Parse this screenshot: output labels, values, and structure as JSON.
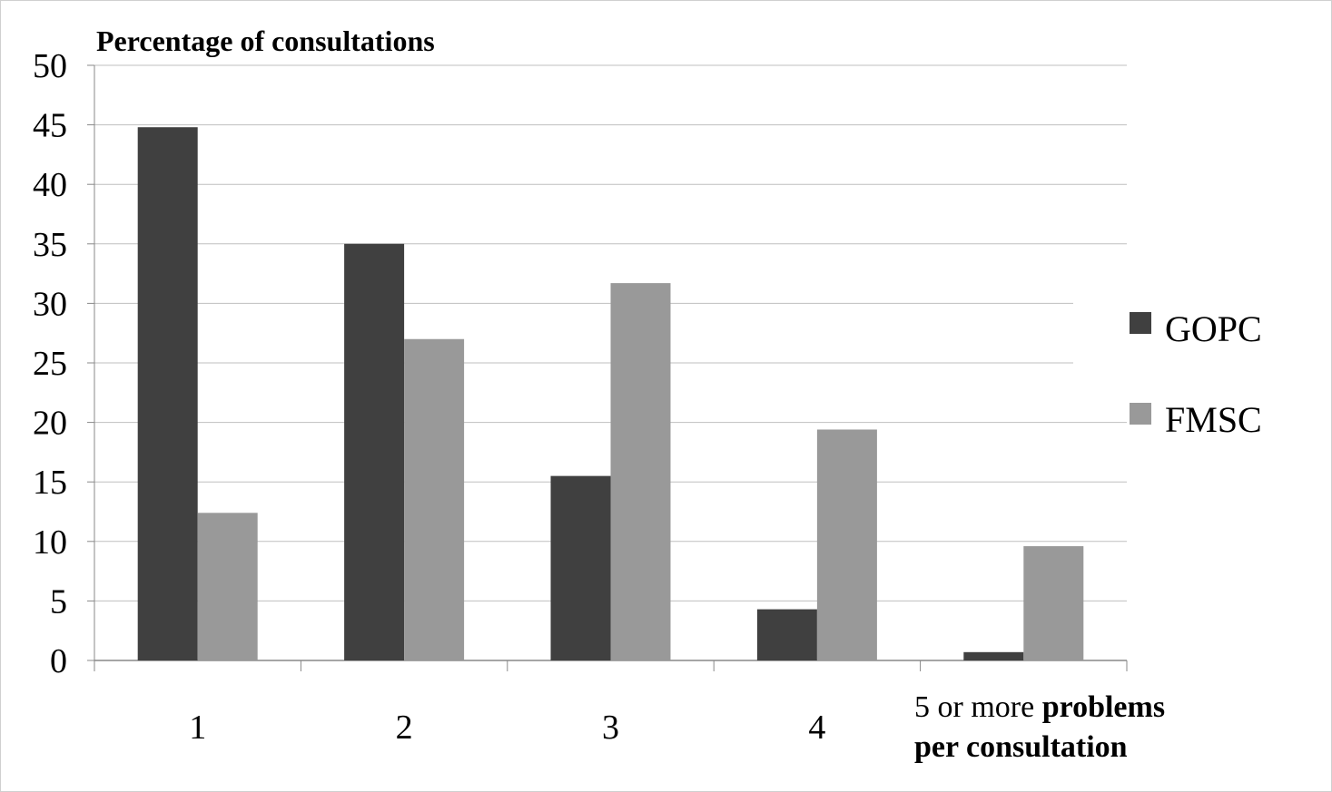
{
  "chart_data": {
    "type": "bar",
    "ylabel": "Percentage of consultations",
    "categories": [
      "1",
      "2",
      "3",
      "4",
      "5 or more"
    ],
    "xlabel_suffix": "problems per consultation",
    "xlabel_suffix_line1": "problems",
    "xlabel_suffix_line2": "per consultation",
    "ylim": [
      0,
      50
    ],
    "yticks": [
      0,
      5,
      10,
      15,
      20,
      25,
      30,
      35,
      40,
      45,
      50
    ],
    "grid": true,
    "legend_position": "right",
    "series": [
      {
        "name": "GOPC",
        "color": "#404040",
        "values": [
          44.8,
          35.0,
          15.5,
          4.3,
          0.7
        ]
      },
      {
        "name": "FMSC",
        "color": "#999999",
        "values": [
          12.4,
          27.0,
          31.7,
          19.4,
          9.6
        ]
      }
    ]
  }
}
